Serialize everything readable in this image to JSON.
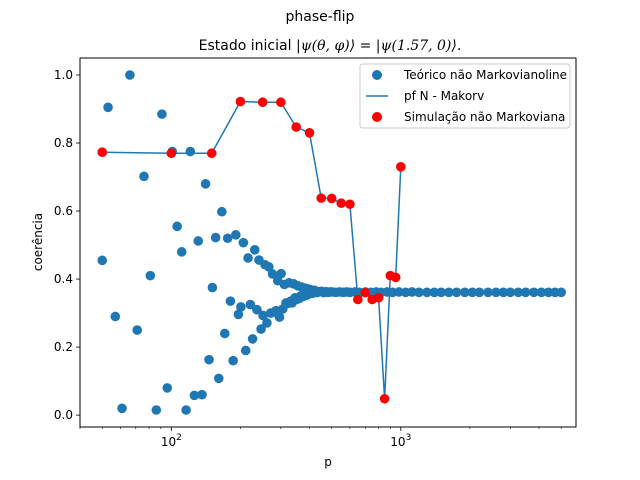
{
  "chart_data": {
    "type": "scatter",
    "suptitle": "phase-flip",
    "title_prefix": "Estado inicial ",
    "title_math": "|ψ(θ, φ)⟩ = |ψ(1.57, 0)⟩.",
    "xlabel": "p",
    "ylabel": "coerência",
    "xscale": "log",
    "xlim": [
      40,
      5800
    ],
    "ylim": [
      -0.035,
      1.05
    ],
    "yticks": [
      0.0,
      0.2,
      0.4,
      0.6,
      0.8,
      1.0
    ],
    "ytick_labels": [
      "0.0",
      "0.2",
      "0.4",
      "0.6",
      "0.8",
      "1.0"
    ],
    "xticks_major": [
      100,
      1000
    ],
    "xtick_labels": [
      {
        "base": "10",
        "exp": "2"
      },
      {
        "base": "10",
        "exp": "3"
      }
    ],
    "legend": {
      "position": "top-right",
      "entries": [
        "Teórico não Markovianoline",
        "pf N - Makorv",
        "Simulação não Markoviana"
      ]
    },
    "colors": {
      "theory": "#1f77b4",
      "line": "#1f77b4",
      "simulation": "#ff0000"
    },
    "series": [
      {
        "name": "Teórico não Markovianoline",
        "kind": "scatter",
        "points": [
          [
            50,
            0.455
          ],
          [
            53,
            0.905
          ],
          [
            57,
            0.29
          ],
          [
            61,
            0.02
          ],
          [
            66,
            1.0
          ],
          [
            71,
            0.25
          ],
          [
            76,
            0.702
          ],
          [
            81,
            0.41
          ],
          [
            86,
            0.015
          ],
          [
            91,
            0.885
          ],
          [
            96,
            0.08
          ],
          [
            101,
            0.775
          ],
          [
            106,
            0.555
          ],
          [
            111,
            0.48
          ],
          [
            116,
            0.015
          ],
          [
            121,
            0.775
          ],
          [
            126,
            0.058
          ],
          [
            131,
            0.512
          ],
          [
            136,
            0.06
          ],
          [
            141,
            0.68
          ],
          [
            146,
            0.163
          ],
          [
            151,
            0.375
          ],
          [
            156,
            0.522
          ],
          [
            161,
            0.108
          ],
          [
            166,
            0.598
          ],
          [
            171,
            0.24
          ],
          [
            176,
            0.52
          ],
          [
            181,
            0.335
          ],
          [
            186,
            0.16
          ],
          [
            191,
            0.53
          ],
          [
            196,
            0.296
          ],
          [
            201,
            0.318
          ],
          [
            206,
            0.507
          ],
          [
            211,
            0.19
          ],
          [
            216,
            0.462
          ],
          [
            221,
            0.325
          ],
          [
            226,
            0.224
          ],
          [
            231,
            0.486
          ],
          [
            236,
            0.31
          ],
          [
            241,
            0.456
          ],
          [
            246,
            0.253
          ],
          [
            251,
            0.293
          ],
          [
            256,
            0.442
          ],
          [
            261,
            0.271
          ],
          [
            266,
            0.436
          ],
          [
            271,
            0.3
          ],
          [
            276,
            0.415
          ],
          [
            281,
            0.303
          ],
          [
            286,
            0.307
          ],
          [
            291,
            0.395
          ],
          [
            296,
            0.288
          ],
          [
            301,
            0.416
          ],
          [
            306,
            0.312
          ],
          [
            311,
            0.384
          ],
          [
            316,
            0.33
          ],
          [
            321,
            0.328
          ],
          [
            326,
            0.389
          ],
          [
            331,
            0.335
          ],
          [
            336,
            0.33
          ],
          [
            341,
            0.386
          ],
          [
            346,
            0.345
          ],
          [
            351,
            0.34
          ],
          [
            356,
            0.38
          ],
          [
            361,
            0.343
          ],
          [
            366,
            0.35
          ],
          [
            371,
            0.376
          ],
          [
            376,
            0.349
          ],
          [
            381,
            0.362
          ],
          [
            386,
            0.373
          ],
          [
            391,
            0.353
          ],
          [
            396,
            0.357
          ],
          [
            401,
            0.37
          ],
          [
            411,
            0.358
          ],
          [
            421,
            0.367
          ],
          [
            431,
            0.36
          ],
          [
            441,
            0.363
          ],
          [
            451,
            0.364
          ],
          [
            461,
            0.36
          ],
          [
            471,
            0.363
          ],
          [
            481,
            0.361
          ],
          [
            491,
            0.362
          ],
          [
            501,
            0.362
          ],
          [
            521,
            0.361
          ],
          [
            541,
            0.362
          ],
          [
            561,
            0.361
          ],
          [
            581,
            0.362
          ],
          [
            601,
            0.361
          ],
          [
            631,
            0.362
          ],
          [
            661,
            0.361
          ],
          [
            701,
            0.362
          ],
          [
            741,
            0.361
          ],
          [
            781,
            0.362
          ],
          [
            821,
            0.361
          ],
          [
            871,
            0.362
          ],
          [
            921,
            0.361
          ],
          [
            981,
            0.362
          ],
          [
            1050,
            0.361
          ],
          [
            1120,
            0.362
          ],
          [
            1200,
            0.361
          ],
          [
            1300,
            0.361
          ],
          [
            1400,
            0.361
          ],
          [
            1500,
            0.361
          ],
          [
            1620,
            0.361
          ],
          [
            1750,
            0.361
          ],
          [
            1900,
            0.361
          ],
          [
            2050,
            0.361
          ],
          [
            2200,
            0.361
          ],
          [
            2400,
            0.361
          ],
          [
            2600,
            0.361
          ],
          [
            2800,
            0.361
          ],
          [
            3000,
            0.361
          ],
          [
            3250,
            0.361
          ],
          [
            3500,
            0.361
          ],
          [
            3800,
            0.361
          ],
          [
            4100,
            0.361
          ],
          [
            4400,
            0.361
          ],
          [
            4700,
            0.361
          ],
          [
            5000,
            0.361
          ]
        ]
      },
      {
        "name": "pf N - Makorv",
        "kind": "line",
        "points": [
          [
            50,
            0.773
          ],
          [
            100,
            0.77
          ],
          [
            150,
            0.77
          ],
          [
            200,
            0.922
          ],
          [
            250,
            0.92
          ],
          [
            300,
            0.92
          ],
          [
            350,
            0.847
          ],
          [
            400,
            0.83
          ],
          [
            450,
            0.638
          ],
          [
            500,
            0.637
          ],
          [
            550,
            0.623
          ],
          [
            600,
            0.62
          ],
          [
            650,
            0.34
          ],
          [
            700,
            0.36
          ],
          [
            750,
            0.34
          ],
          [
            800,
            0.345
          ],
          [
            850,
            0.048
          ],
          [
            900,
            0.41
          ],
          [
            950,
            0.405
          ],
          [
            1000,
            0.73
          ]
        ]
      },
      {
        "name": "Simulação não Markoviana",
        "kind": "scatter",
        "points": [
          [
            50,
            0.773
          ],
          [
            100,
            0.77
          ],
          [
            150,
            0.77
          ],
          [
            200,
            0.922
          ],
          [
            250,
            0.92
          ],
          [
            300,
            0.92
          ],
          [
            350,
            0.847
          ],
          [
            400,
            0.83
          ],
          [
            450,
            0.638
          ],
          [
            500,
            0.637
          ],
          [
            550,
            0.623
          ],
          [
            600,
            0.62
          ],
          [
            650,
            0.34
          ],
          [
            700,
            0.36
          ],
          [
            750,
            0.34
          ],
          [
            800,
            0.345
          ],
          [
            850,
            0.048
          ],
          [
            900,
            0.41
          ],
          [
            950,
            0.405
          ],
          [
            1000,
            0.73
          ]
        ]
      }
    ]
  }
}
